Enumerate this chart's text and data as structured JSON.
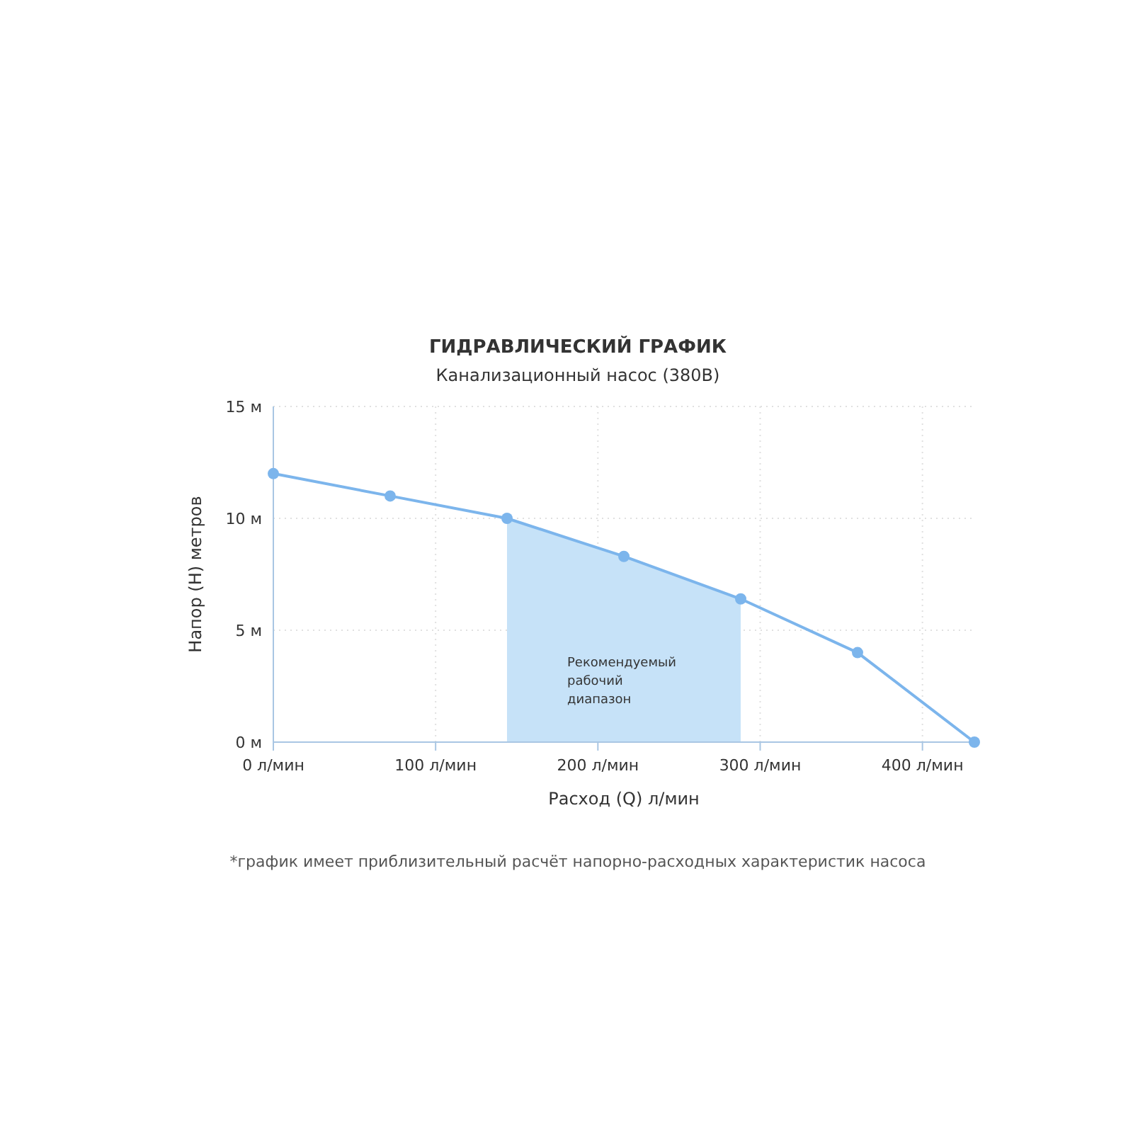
{
  "chart_data": {
    "type": "line",
    "title": "ГИДРАВЛИЧЕСКИЙ ГРАФИК",
    "subtitle": "Канализационный насос (380В)",
    "xlabel": "Расход (Q) л/мин",
    "ylabel": "Напор (H) метров",
    "x": [
      0,
      72,
      144,
      216,
      288,
      360,
      432
    ],
    "series": [
      {
        "type": "area",
        "color": "#c6e2f8",
        "x": [
          144,
          216,
          288
        ],
        "values": [
          10,
          8.3,
          6.4
        ]
      },
      {
        "color": "#7cb5ec",
        "marker": "circle",
        "values": [
          12,
          11,
          10,
          8.3,
          6.4,
          4,
          0
        ]
      }
    ],
    "xlim": [
      0,
      432
    ],
    "xticks": [
      {
        "value": 0,
        "label": "0 л/мин"
      },
      {
        "value": 100,
        "label": "100 л/мин"
      },
      {
        "value": 200,
        "label": "200 л/мин"
      },
      {
        "value": 300,
        "label": "300 л/мин"
      },
      {
        "value": 400,
        "label": "400 л/мин"
      }
    ],
    "ylim": [
      0,
      15
    ],
    "yticks": [
      {
        "value": 0,
        "label": "0 м"
      },
      {
        "value": 5,
        "label": "5 м"
      },
      {
        "value": 10,
        "label": "10 м"
      },
      {
        "value": 15,
        "label": "15 м"
      }
    ],
    "grid": true,
    "line_style": "solid",
    "annotations": [
      "Рекомендуемый рабочий диапазон",
      "*график имеет приблизительный расчёт напорно-расходных характеристик насоса"
    ]
  }
}
